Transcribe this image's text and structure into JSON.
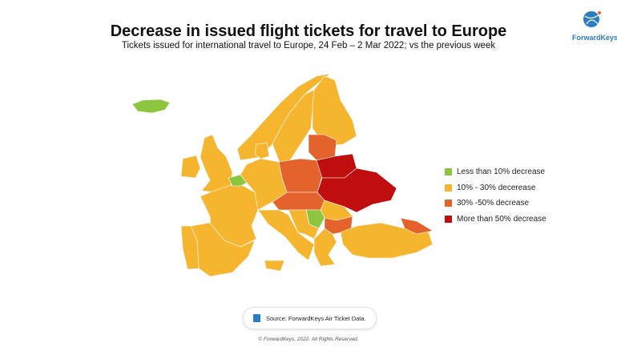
{
  "header": {
    "title": "Decrease in issued flight tickets for travel to Europe",
    "subtitle": "Tickets issued for international travel to Europe, 24 Feb – 2 Mar 2022; vs the previous week"
  },
  "logo": {
    "text": "ForwardKeys"
  },
  "colors": {
    "green": "#8cc63f",
    "yellow": "#f5b52e",
    "orange": "#e4622b",
    "red": "#c00d0d"
  },
  "legend": [
    {
      "label": "Less than 10% decrease",
      "category": "green"
    },
    {
      "label": "10% - 30% decerease",
      "category": "yellow"
    },
    {
      "label": "30% -50% decrease",
      "category": "orange"
    },
    {
      "label": "More than 50% decrease",
      "category": "red"
    }
  ],
  "regions": [
    {
      "name": "Iceland",
      "category": "green"
    },
    {
      "name": "Norway",
      "category": "yellow"
    },
    {
      "name": "Sweden",
      "category": "yellow"
    },
    {
      "name": "Finland",
      "category": "yellow"
    },
    {
      "name": "United Kingdom",
      "category": "yellow"
    },
    {
      "name": "Ireland",
      "category": "yellow"
    },
    {
      "name": "France",
      "category": "yellow"
    },
    {
      "name": "Spain",
      "category": "yellow"
    },
    {
      "name": "Portugal",
      "category": "yellow"
    },
    {
      "name": "Belgium",
      "category": "green"
    },
    {
      "name": "Germany",
      "category": "yellow"
    },
    {
      "name": "Poland",
      "category": "orange"
    },
    {
      "name": "Baltics",
      "category": "orange"
    },
    {
      "name": "Belarus",
      "category": "red"
    },
    {
      "name": "Ukraine",
      "category": "red"
    },
    {
      "name": "Czechia-Slovakia-Austria-Hungary",
      "category": "orange"
    },
    {
      "name": "Romania",
      "category": "yellow"
    },
    {
      "name": "Serbia",
      "category": "green"
    },
    {
      "name": "Bulgaria",
      "category": "orange"
    },
    {
      "name": "Italy",
      "category": "yellow"
    },
    {
      "name": "Balkans",
      "category": "yellow"
    },
    {
      "name": "Greece",
      "category": "yellow"
    },
    {
      "name": "Turkey",
      "category": "yellow"
    },
    {
      "name": "Caucasus",
      "category": "orange"
    },
    {
      "name": "Denmark",
      "category": "yellow"
    }
  ],
  "source": {
    "text": "Source: ForwardKeys Air Ticket Data."
  },
  "footer": {
    "copyright": "© ForwardKeys, 2022. All Rights Reserved."
  }
}
